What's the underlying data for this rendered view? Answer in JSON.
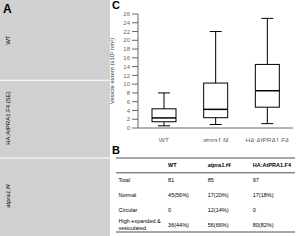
{
  "chart_data": {
    "type": "box",
    "ylabel": "Vesicle extent (x10² nm²)",
    "categories": [
      "WT",
      "atpra1.f4",
      "HA:AtPRA1.F4"
    ],
    "boxes": [
      {
        "min": 0.5,
        "q1": 1.425,
        "median": 2.3,
        "q3": 4.375,
        "max": 8.0
      },
      {
        "min": 0.8,
        "q1": 2.35,
        "median": 4.25,
        "q3": 10.25,
        "max": 22.0
      },
      {
        "min": 1.0,
        "q1": 4.75,
        "median": 8.5,
        "q3": 14.5,
        "max": 25.0
      }
    ],
    "color": "white",
    "ylim": [
      0,
      26
    ],
    "yticks": [
      0,
      2,
      4,
      6,
      8,
      10,
      12,
      14,
      16,
      18,
      20,
      22,
      24,
      26
    ],
    "annotations": {
      "panel_a": "A",
      "panel_b": "B",
      "panel_c": "C",
      "image_labels": [
        "WT",
        "HA:AtPRA1.F4 (SE)",
        "atpra1.f4"
      ]
    },
    "table": {
      "headers": [
        "WT",
        "atpra1.f4",
        "HA:AtPRA1.F4"
      ],
      "rows": [
        [
          "Total",
          "81",
          "85",
          "97"
        ],
        [
          "Normal",
          "45(56%)",
          "17(20%)",
          "17(18%)"
        ],
        [
          "Circular",
          "0",
          "12(14%)",
          "0"
        ],
        [
          "High expanded &\nvesiculated",
          "36(44%)",
          "56(66%)",
          "80(82%)"
        ]
      ]
    }
  }
}
